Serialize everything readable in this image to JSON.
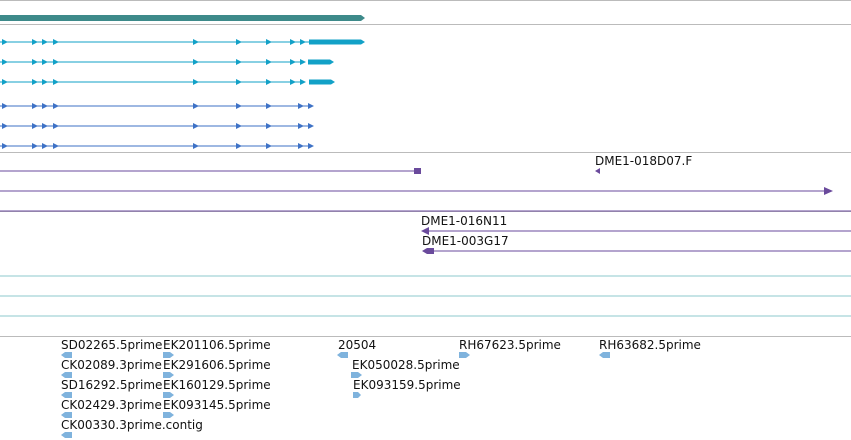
{
  "colors": {
    "background": "#ffffff",
    "divider": "#bbbbbb",
    "teal_bar": "#3d8a8a",
    "cyan_gene": "#12a1c7",
    "blue_gene": "#3e72c6",
    "purple_clone": "#6a4a9c",
    "light_teal_line": "#8ec8cc",
    "est_blue": "#7fb3dd"
  },
  "clone_tracks": {
    "dme1_018d07_f": "DME1-018D07.F",
    "dme1_016n11": "DME1-016N11",
    "dme1_003g17": "DME1-003G17"
  },
  "est_tracks": {
    "sd02265": "SD02265.5prime",
    "ek201106": "EK201106.5prime",
    "ck02089": "CK02089.3prime",
    "ek291606": "EK291606.5prime",
    "sd16292": "SD16292.5prime",
    "ek160129": "EK160129.5prime",
    "ck02429": "CK02429.3prime",
    "ek093145": "EK093145.5prime",
    "ck00330": "CK00330.3prime.contig",
    "id20504": "20504",
    "ek050028": "EK050028.5prime",
    "ek093159": "EK093159.5prime",
    "rh67623": "RH67623.5prime",
    "rh63682": "RH63682.5prime"
  },
  "icons": {
    "exon_marker": "right-triangle",
    "est_left": "left-arrow-block",
    "est_right": "right-arrow-block"
  }
}
